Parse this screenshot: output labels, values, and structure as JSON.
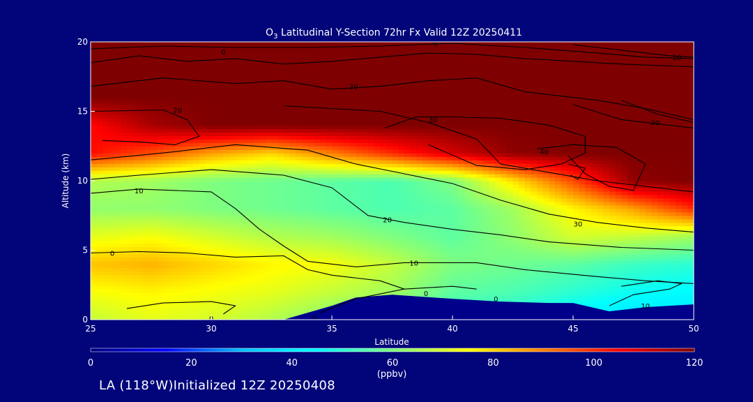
{
  "chart_data": {
    "type": "heatmap",
    "title_prefix": "O",
    "title_sub": "3",
    "title_rest": " Latitudinal Y-Section 72hr  Fx Valid 12Z 20250411",
    "xlabel": "Latitude",
    "ylabel": "Altitude (km)",
    "xlim": [
      25,
      50
    ],
    "ylim": [
      0,
      20
    ],
    "x_ticks": [
      "25",
      "30",
      "35",
      "40",
      "45",
      "50"
    ],
    "y_ticks": [
      "0",
      "5",
      "10",
      "15",
      "20"
    ],
    "colorbar": {
      "min": 0,
      "max": 120,
      "ticks": [
        "0",
        "20",
        "40",
        "60",
        "80",
        "100",
        "120"
      ],
      "units": "(ppbv)"
    },
    "colorscale": [
      "#00007f",
      "#0000ff",
      "#00bfff",
      "#00ffff",
      "#7fff7f",
      "#ffff00",
      "#ff7f00",
      "#ff0000",
      "#7f0000"
    ],
    "grid_lat": [
      25,
      27.5,
      30,
      32.5,
      35,
      37.5,
      40,
      42.5,
      45,
      47.5,
      50
    ],
    "grid_alt": [
      0,
      2,
      4,
      6,
      8,
      10,
      12,
      14,
      16,
      18,
      20
    ],
    "grid_values": [
      [
        68,
        72,
        70,
        66,
        60,
        58,
        50,
        48,
        42,
        38,
        40
      ],
      [
        74,
        76,
        74,
        72,
        68,
        64,
        56,
        54,
        50,
        46,
        44
      ],
      [
        82,
        84,
        80,
        76,
        74,
        68,
        60,
        58,
        56,
        52,
        50
      ],
      [
        72,
        74,
        70,
        66,
        64,
        60,
        56,
        62,
        70,
        68,
        64
      ],
      [
        62,
        62,
        60,
        58,
        56,
        54,
        56,
        64,
        76,
        86,
        100
      ],
      [
        66,
        64,
        60,
        58,
        56,
        54,
        60,
        78,
        96,
        118,
        120
      ],
      [
        104,
        96,
        86,
        80,
        90,
        100,
        110,
        118,
        120,
        120,
        120
      ],
      [
        104,
        115,
        120,
        120,
        120,
        120,
        120,
        120,
        120,
        120,
        120
      ],
      [
        120,
        120,
        120,
        120,
        120,
        120,
        120,
        120,
        120,
        120,
        120
      ],
      [
        120,
        120,
        120,
        120,
        120,
        120,
        120,
        120,
        120,
        120,
        120
      ],
      [
        120,
        120,
        120,
        120,
        120,
        120,
        120,
        120,
        120,
        120,
        120
      ]
    ],
    "terrain_km": [
      [
        25,
        0
      ],
      [
        33,
        0
      ],
      [
        35,
        1
      ],
      [
        36,
        1.6
      ],
      [
        37.5,
        1.8
      ],
      [
        40,
        1.5
      ],
      [
        42,
        1.3
      ],
      [
        44,
        1.2
      ],
      [
        45,
        1.2
      ],
      [
        46.5,
        0.6
      ],
      [
        48,
        0.9
      ],
      [
        50,
        1.1
      ]
    ],
    "contours": [
      {
        "label": "0",
        "points": [
          [
            25,
            4.8
          ],
          [
            27,
            4.9
          ],
          [
            29,
            4.8
          ],
          [
            31,
            4.5
          ],
          [
            33,
            4.6
          ],
          [
            34,
            3.6
          ],
          [
            35,
            3.2
          ],
          [
            37,
            2.8
          ],
          [
            38,
            2.2
          ]
        ]
      },
      {
        "label": "0",
        "points": [
          [
            26.5,
            0.8
          ],
          [
            28,
            1.2
          ],
          [
            30,
            1.3
          ],
          [
            31,
            1.0
          ],
          [
            30.5,
            0.4
          ]
        ]
      },
      {
        "label": "0",
        "points": [
          [
            34.5,
            0.5
          ],
          [
            36,
            1.5
          ],
          [
            38,
            2.2
          ],
          [
            40,
            2.4
          ],
          [
            41,
            2.2
          ]
        ]
      },
      {
        "label": "10",
        "points": [
          [
            25,
            9.1
          ],
          [
            27,
            9.4
          ],
          [
            30,
            9.2
          ],
          [
            31,
            8.0
          ],
          [
            32,
            6.5
          ],
          [
            33,
            5.3
          ],
          [
            34,
            4.2
          ],
          [
            36,
            3.8
          ],
          [
            38,
            4.1
          ],
          [
            41,
            4.1
          ],
          [
            43,
            3.6
          ],
          [
            46,
            3.1
          ],
          [
            48,
            2.8
          ],
          [
            50,
            2.6
          ]
        ]
      },
      {
        "label": "10",
        "points": [
          [
            46.5,
            1.0
          ],
          [
            47.5,
            1.8
          ],
          [
            49,
            2.2
          ],
          [
            49.5,
            2.6
          ],
          [
            48.5,
            2.8
          ],
          [
            47,
            2.4
          ]
        ]
      },
      {
        "label": "20",
        "points": [
          [
            25,
            10.1
          ],
          [
            27,
            10.4
          ],
          [
            30,
            10.8
          ],
          [
            33,
            10.4
          ],
          [
            35,
            9.5
          ],
          [
            36.5,
            7.5
          ],
          [
            38,
            7.0
          ],
          [
            40,
            6.5
          ],
          [
            42,
            6.1
          ],
          [
            44,
            5.6
          ],
          [
            47,
            5.2
          ],
          [
            50,
            5.0
          ]
        ]
      },
      {
        "label": "30",
        "points": [
          [
            25,
            11.5
          ],
          [
            28,
            12.0
          ],
          [
            31,
            12.6
          ],
          [
            34,
            12.2
          ],
          [
            36,
            11.2
          ],
          [
            38,
            10.5
          ],
          [
            40,
            9.8
          ],
          [
            42,
            8.6
          ],
          [
            44,
            7.6
          ],
          [
            46,
            7.0
          ],
          [
            48,
            6.6
          ],
          [
            50,
            6.3
          ]
        ]
      },
      {
        "label": "20",
        "points": [
          [
            25,
            15.0
          ],
          [
            28,
            15.1
          ],
          [
            29,
            14.4
          ],
          [
            29.5,
            13.2
          ],
          [
            28.5,
            12.6
          ],
          [
            27,
            12.8
          ],
          [
            25.5,
            12.9
          ]
        ]
      },
      {
        "label": "30",
        "points": [
          [
            33,
            15.4
          ],
          [
            35,
            15.2
          ],
          [
            37,
            15.0
          ],
          [
            39,
            14.2
          ],
          [
            41,
            13.0
          ],
          [
            42,
            11.2
          ],
          [
            44,
            10.6
          ],
          [
            46,
            10.0
          ],
          [
            48,
            9.6
          ],
          [
            50,
            9.2
          ]
        ]
      },
      {
        "label": "30",
        "points": [
          [
            37.2,
            13.8
          ],
          [
            38.5,
            14.6
          ],
          [
            40,
            14.6
          ],
          [
            42,
            14.5
          ],
          [
            44,
            14.0
          ],
          [
            45.5,
            13.2
          ],
          [
            45.5,
            12.0
          ],
          [
            44.5,
            11.2
          ],
          [
            43,
            10.8
          ],
          [
            41,
            11.1
          ],
          [
            39,
            12.6
          ]
        ]
      },
      {
        "label": "40",
        "points": [
          [
            43.5,
            12.3
          ],
          [
            45,
            12.6
          ],
          [
            46.8,
            12.4
          ],
          [
            48,
            11.2
          ],
          [
            47.5,
            9.3
          ],
          [
            46.5,
            9.6
          ],
          [
            45.5,
            10.5
          ],
          [
            44.8,
            11.8
          ]
        ]
      },
      {
        "label": "40",
        "points": [
          [
            44.8,
            11.2
          ],
          [
            45.5,
            10.9
          ],
          [
            45.2,
            10.1
          ],
          [
            44.9,
            10.4
          ]
        ]
      },
      {
        "label": "20",
        "points": [
          [
            25,
            16.8
          ],
          [
            28,
            17.4
          ],
          [
            31,
            17.0
          ],
          [
            33,
            17.2
          ],
          [
            35,
            16.6
          ],
          [
            37,
            16.8
          ],
          [
            39,
            17.2
          ],
          [
            41,
            17.4
          ],
          [
            43,
            16.4
          ],
          [
            46,
            15.8
          ],
          [
            48,
            15.2
          ],
          [
            50,
            14.4
          ]
        ]
      },
      {
        "label": "0",
        "points": [
          [
            25,
            18.5
          ],
          [
            27,
            19.0
          ],
          [
            29,
            18.6
          ],
          [
            31,
            18.8
          ],
          [
            33,
            18.4
          ],
          [
            35,
            18.6
          ],
          [
            37,
            18.9
          ],
          [
            39,
            19.2
          ],
          [
            41,
            19.1
          ],
          [
            43,
            18.8
          ],
          [
            45,
            18.6
          ],
          [
            47,
            18.4
          ],
          [
            50,
            18.2
          ]
        ]
      },
      {
        "label": "10",
        "points": [
          [
            25,
            19.5
          ],
          [
            28,
            19.7
          ],
          [
            31,
            19.6
          ],
          [
            34,
            19.6
          ],
          [
            37,
            19.7
          ],
          [
            40,
            19.9
          ],
          [
            43,
            19.6
          ],
          [
            46,
            19.2
          ],
          [
            48,
            18.9
          ],
          [
            50,
            18.8
          ]
        ]
      },
      {
        "label": "10",
        "points": [
          [
            45,
            19.8
          ],
          [
            47,
            19.4
          ],
          [
            49,
            19.0
          ],
          [
            50,
            18.9
          ]
        ]
      },
      {
        "label": "30",
        "points": [
          [
            47,
            15.8
          ],
          [
            48.5,
            14.8
          ],
          [
            50,
            14.2
          ]
        ]
      },
      {
        "label": "20",
        "points": [
          [
            45,
            15.5
          ],
          [
            47,
            14.4
          ],
          [
            48.5,
            14.1
          ],
          [
            50,
            13.8
          ]
        ]
      }
    ],
    "contour_labels": [
      {
        "text": "0",
        "x": 25.9,
        "y": 4.8
      },
      {
        "text": "0",
        "x": 30,
        "y": 0.1
      },
      {
        "text": "0",
        "x": 34.3,
        "y": 0.15
      },
      {
        "text": "0",
        "x": 38.9,
        "y": 1.9
      },
      {
        "text": "0",
        "x": 41.8,
        "y": 1.5
      },
      {
        "text": "10",
        "x": 27,
        "y": 9.3
      },
      {
        "text": "10",
        "x": 38.4,
        "y": 4.1
      },
      {
        "text": "10",
        "x": 48,
        "y": 1.0
      },
      {
        "text": "20",
        "x": 37.3,
        "y": 7.2
      },
      {
        "text": "30",
        "x": 45.2,
        "y": 6.9
      },
      {
        "text": "40",
        "x": 43.8,
        "y": 12.1
      },
      {
        "text": "30",
        "x": 39.2,
        "y": 14.4
      },
      {
        "text": "20",
        "x": 28.6,
        "y": 15.1
      },
      {
        "text": "20",
        "x": 35.9,
        "y": 16.8
      },
      {
        "text": "20",
        "x": 48.4,
        "y": 14.2
      },
      {
        "text": "0",
        "x": 30.5,
        "y": 19.3
      },
      {
        "text": "0",
        "x": 39.3,
        "y": 19.9
      },
      {
        "text": "10",
        "x": 49.3,
        "y": 18.9
      }
    ]
  },
  "footer": {
    "text": "LA (118°W)Initialized 12Z 20250408"
  }
}
